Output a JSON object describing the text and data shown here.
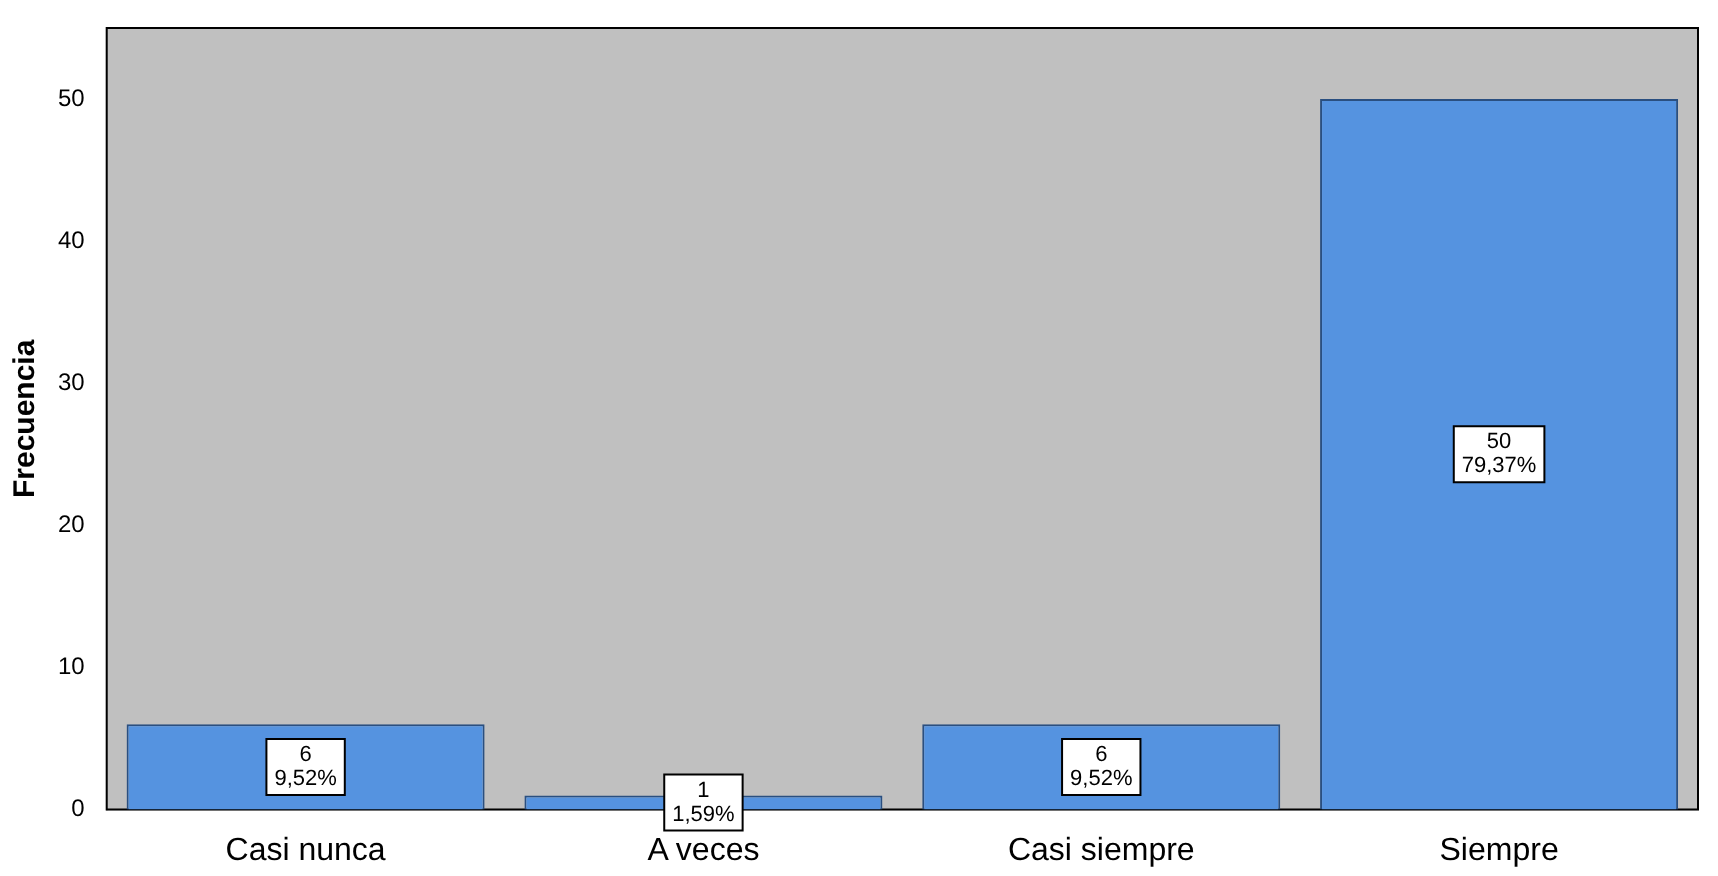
{
  "chart_data": {
    "type": "bar",
    "ylabel": "Frecuencia",
    "categories": [
      "Casi nunca",
      "A veces",
      "Casi siempre",
      "Siempre"
    ],
    "values": [
      6,
      1,
      6,
      50
    ],
    "value_labels": [
      "6\n9,52%",
      "1\n1,59%",
      "6\n9,52%",
      "50\n79,37%"
    ],
    "color": "#5593e0",
    "ylim": [
      0,
      55
    ],
    "yticks": [
      0,
      10,
      20,
      30,
      40,
      50
    ],
    "grid": false,
    "legend": false
  }
}
